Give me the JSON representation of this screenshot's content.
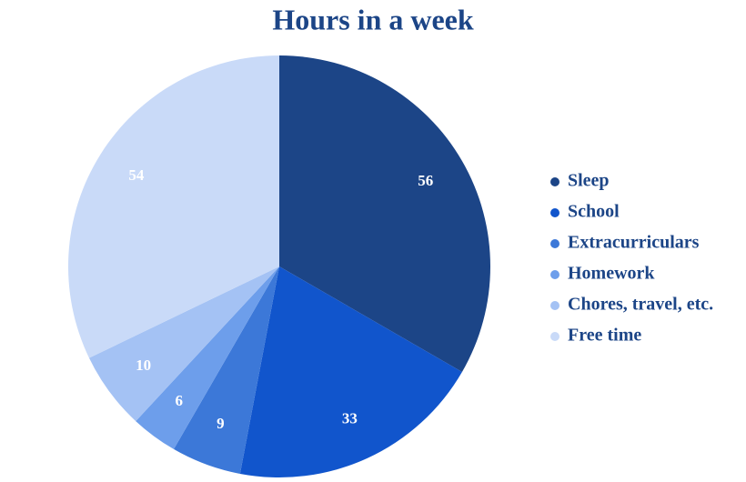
{
  "chart_data": {
    "type": "pie",
    "title": "Hours in a week",
    "categories": [
      "Sleep",
      "School",
      "Extracurriculars",
      "Homework",
      "Chores, travel, etc.",
      "Free time"
    ],
    "values": [
      56,
      33,
      9,
      6,
      10,
      54
    ],
    "colors": [
      "#1c4587",
      "#1155cc",
      "#3c78d8",
      "#6d9eeb",
      "#a4c2f4",
      "#c9daf8"
    ],
    "legend": "right"
  }
}
